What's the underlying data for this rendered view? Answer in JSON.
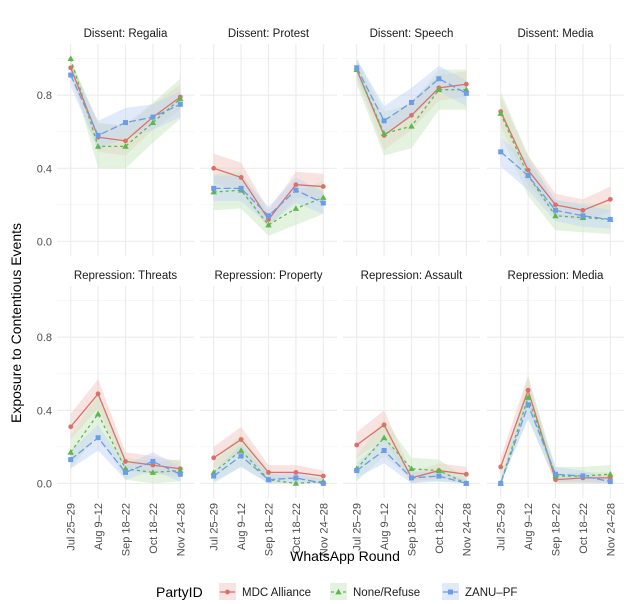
{
  "chart_data": {
    "type": "line",
    "xlabel": "WhatsApp Round",
    "ylabel": "Exposure to Contentious Events",
    "categories": [
      "Jul 25–29",
      "Aug 9–12",
      "Sep 18–22",
      "Oct 18–22",
      "Nov 24–28"
    ],
    "ylim": [
      -0.08,
      1.08
    ],
    "yticks": [
      0.0,
      0.4,
      0.8
    ],
    "ytick_labels": [
      "0.0",
      "0.4",
      "0.8"
    ],
    "grid": true,
    "legend": {
      "title": "PartyID",
      "position": "bottom",
      "entries": [
        "MDC Alliance",
        "None/Refuse",
        "ZANU–PF"
      ]
    },
    "series_style": [
      {
        "name": "MDC Alliance",
        "color": "#D9716A",
        "band": "#F3C8C4",
        "dash": "",
        "marker": "circle"
      },
      {
        "name": "None/Refuse",
        "color": "#5CB84C",
        "band": "#C9E7C1",
        "dash": "3,3",
        "marker": "triangle"
      },
      {
        "name": "ZANU–PF",
        "color": "#6C9CE6",
        "band": "#C4D6F6",
        "dash": "7,3",
        "marker": "square"
      }
    ],
    "panels": [
      {
        "title": "Dissent: Regalia",
        "series": [
          {
            "name": "MDC Alliance",
            "values": [
              0.95,
              0.57,
              0.55,
              0.68,
              0.79
            ],
            "lower": [
              0.9,
              0.49,
              0.47,
              0.61,
              0.72
            ],
            "upper": [
              0.99,
              0.65,
              0.63,
              0.75,
              0.86
            ]
          },
          {
            "name": "None/Refuse",
            "values": [
              1.0,
              0.52,
              0.52,
              0.65,
              0.78
            ],
            "lower": [
              0.93,
              0.4,
              0.4,
              0.54,
              0.67
            ],
            "upper": [
              1.0,
              0.64,
              0.64,
              0.76,
              0.89
            ]
          },
          {
            "name": "ZANU–PF",
            "values": [
              0.91,
              0.58,
              0.65,
              0.68,
              0.75
            ],
            "lower": [
              0.85,
              0.5,
              0.57,
              0.61,
              0.68
            ],
            "upper": [
              0.97,
              0.66,
              0.73,
              0.75,
              0.82
            ]
          }
        ]
      },
      {
        "title": "Dissent: Protest",
        "series": [
          {
            "name": "MDC Alliance",
            "values": [
              0.4,
              0.35,
              0.12,
              0.31,
              0.3
            ],
            "lower": [
              0.32,
              0.27,
              0.07,
              0.24,
              0.23
            ],
            "upper": [
              0.48,
              0.43,
              0.17,
              0.38,
              0.37
            ]
          },
          {
            "name": "None/Refuse",
            "values": [
              0.27,
              0.28,
              0.09,
              0.18,
              0.24
            ],
            "lower": [
              0.17,
              0.18,
              0.03,
              0.09,
              0.15
            ],
            "upper": [
              0.37,
              0.38,
              0.15,
              0.27,
              0.33
            ]
          },
          {
            "name": "ZANU–PF",
            "values": [
              0.29,
              0.29,
              0.14,
              0.28,
              0.21
            ],
            "lower": [
              0.22,
              0.22,
              0.09,
              0.21,
              0.15
            ],
            "upper": [
              0.36,
              0.36,
              0.19,
              0.35,
              0.27
            ]
          }
        ]
      },
      {
        "title": "Dissent: Speech",
        "series": [
          {
            "name": "MDC Alliance",
            "values": [
              0.94,
              0.58,
              0.69,
              0.84,
              0.86
            ],
            "lower": [
              0.89,
              0.5,
              0.61,
              0.77,
              0.79
            ],
            "upper": [
              0.99,
              0.66,
              0.77,
              0.91,
              0.93
            ]
          },
          {
            "name": "None/Refuse",
            "values": [
              0.94,
              0.59,
              0.63,
              0.83,
              0.83
            ],
            "lower": [
              0.86,
              0.47,
              0.51,
              0.72,
              0.72
            ],
            "upper": [
              1.0,
              0.71,
              0.75,
              0.94,
              0.94
            ]
          },
          {
            "name": "ZANU–PF",
            "values": [
              0.95,
              0.66,
              0.76,
              0.89,
              0.81
            ],
            "lower": [
              0.9,
              0.58,
              0.68,
              0.82,
              0.74
            ],
            "upper": [
              1.0,
              0.74,
              0.84,
              0.96,
              0.88
            ]
          }
        ]
      },
      {
        "title": "Dissent: Media",
        "series": [
          {
            "name": "MDC Alliance",
            "values": [
              0.71,
              0.39,
              0.2,
              0.17,
              0.23
            ],
            "lower": [
              0.63,
              0.31,
              0.14,
              0.11,
              0.16
            ],
            "upper": [
              0.79,
              0.47,
              0.26,
              0.23,
              0.3
            ]
          },
          {
            "name": "None/Refuse",
            "values": [
              0.7,
              0.36,
              0.14,
              0.13,
              0.12
            ],
            "lower": [
              0.58,
              0.25,
              0.06,
              0.05,
              0.04
            ],
            "upper": [
              0.82,
              0.47,
              0.22,
              0.21,
              0.2
            ]
          },
          {
            "name": "ZANU–PF",
            "values": [
              0.49,
              0.36,
              0.17,
              0.14,
              0.12
            ],
            "lower": [
              0.41,
              0.28,
              0.11,
              0.08,
              0.07
            ],
            "upper": [
              0.57,
              0.44,
              0.23,
              0.2,
              0.17
            ]
          }
        ]
      },
      {
        "title": "Repression: Threats",
        "series": [
          {
            "name": "MDC Alliance",
            "values": [
              0.31,
              0.49,
              0.12,
              0.1,
              0.08
            ],
            "lower": [
              0.24,
              0.41,
              0.07,
              0.05,
              0.04
            ],
            "upper": [
              0.38,
              0.57,
              0.17,
              0.15,
              0.12
            ]
          },
          {
            "name": "None/Refuse",
            "values": [
              0.17,
              0.38,
              0.08,
              0.06,
              0.07
            ],
            "lower": [
              0.08,
              0.27,
              0.02,
              0.0,
              0.01
            ],
            "upper": [
              0.26,
              0.49,
              0.14,
              0.12,
              0.13
            ]
          },
          {
            "name": "ZANU–PF",
            "values": [
              0.13,
              0.25,
              0.06,
              0.12,
              0.05
            ],
            "lower": [
              0.08,
              0.18,
              0.02,
              0.07,
              0.01
            ],
            "upper": [
              0.18,
              0.32,
              0.1,
              0.17,
              0.09
            ]
          }
        ]
      },
      {
        "title": "Repression: Property",
        "series": [
          {
            "name": "MDC Alliance",
            "values": [
              0.14,
              0.24,
              0.06,
              0.06,
              0.04
            ],
            "lower": [
              0.08,
              0.17,
              0.02,
              0.02,
              0.01
            ],
            "upper": [
              0.2,
              0.31,
              0.1,
              0.1,
              0.07
            ]
          },
          {
            "name": "None/Refuse",
            "values": [
              0.06,
              0.18,
              0.02,
              0.0,
              0.01
            ],
            "lower": [
              0.0,
              0.09,
              0.0,
              0.0,
              0.0
            ],
            "upper": [
              0.12,
              0.27,
              0.06,
              0.03,
              0.04
            ]
          },
          {
            "name": "ZANU–PF",
            "values": [
              0.04,
              0.15,
              0.02,
              0.03,
              0.0
            ],
            "lower": [
              0.01,
              0.09,
              0.0,
              0.0,
              0.0
            ],
            "upper": [
              0.07,
              0.21,
              0.05,
              0.06,
              0.02
            ]
          }
        ]
      },
      {
        "title": "Repression: Assault",
        "series": [
          {
            "name": "MDC Alliance",
            "values": [
              0.21,
              0.32,
              0.03,
              0.07,
              0.05
            ],
            "lower": [
              0.14,
              0.24,
              0.0,
              0.03,
              0.01
            ],
            "upper": [
              0.28,
              0.4,
              0.06,
              0.11,
              0.09
            ]
          },
          {
            "name": "None/Refuse",
            "values": [
              0.08,
              0.25,
              0.08,
              0.07,
              0.0
            ],
            "lower": [
              0.01,
              0.15,
              0.02,
              0.01,
              0.0
            ],
            "upper": [
              0.15,
              0.35,
              0.14,
              0.13,
              0.03
            ]
          },
          {
            "name": "ZANU–PF",
            "values": [
              0.07,
              0.18,
              0.03,
              0.04,
              0.0
            ],
            "lower": [
              0.03,
              0.11,
              0.0,
              0.01,
              0.0
            ],
            "upper": [
              0.11,
              0.25,
              0.06,
              0.07,
              0.02
            ]
          }
        ]
      },
      {
        "title": "Repression: Media",
        "series": [
          {
            "name": "MDC Alliance",
            "values": [
              0.09,
              0.51,
              0.02,
              0.03,
              0.03
            ],
            "lower": [
              0.04,
              0.43,
              0.0,
              0.0,
              0.0
            ],
            "upper": [
              0.14,
              0.59,
              0.05,
              0.06,
              0.06
            ]
          },
          {
            "name": "None/Refuse",
            "values": [
              0.0,
              0.47,
              0.04,
              0.04,
              0.05
            ],
            "lower": [
              0.0,
              0.36,
              0.0,
              0.0,
              0.0
            ],
            "upper": [
              0.03,
              0.58,
              0.09,
              0.09,
              0.1
            ]
          },
          {
            "name": "ZANU–PF",
            "values": [
              0.0,
              0.43,
              0.05,
              0.04,
              0.01
            ],
            "lower": [
              0.0,
              0.35,
              0.01,
              0.01,
              0.0
            ],
            "upper": [
              0.02,
              0.51,
              0.09,
              0.07,
              0.03
            ]
          }
        ]
      }
    ]
  }
}
